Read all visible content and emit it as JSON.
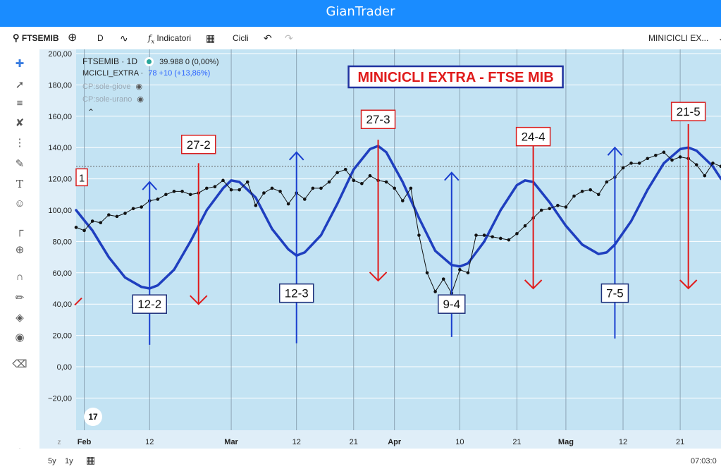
{
  "app": {
    "title": "GianTrader"
  },
  "toolbar": {
    "symbol": "FTSEMIB",
    "interval": "D",
    "indicators_label": "Indicatori",
    "cycles_label": "Cicli",
    "layout_name": "MINICICLI EX..."
  },
  "legend": {
    "symbol_line": "FTSEMIB · 1D",
    "price": "39.988 0 (0,00%)",
    "indicator_name": "MCICLI_EXTRA ·",
    "indicator_value": "78 +10 (+13,86%)",
    "hidden_1": "CP:sole-giove",
    "hidden_2": "CP:sole-urano"
  },
  "bottom": {
    "range_5y": "5y",
    "range_1y": "1y",
    "time": "07:03:0"
  },
  "colors": {
    "price_line": "#111111",
    "cycle_line": "#1f3fbf",
    "bg": "#c3e3f3",
    "up_arrow": "#1a3fcf",
    "down_arrow": "#e01b1b"
  },
  "icons": [
    "crosshair-icon",
    "trend-line-icon",
    "horizontal-lines-icon",
    "pattern-icon",
    "fib-icon",
    "brush-icon",
    "text-icon",
    "emoji-icon",
    "ruler-icon",
    "zoom-icon",
    "magnet-icon",
    "lock-draw-icon",
    "unlock-icon",
    "eye-icon",
    "trash-icon",
    "layers-icon"
  ],
  "chart_data": {
    "type": "line",
    "title": "MINICICLI EXTRA - FTSE MIB",
    "ylim": [
      -30,
      200
    ],
    "y_ticks": [
      "200,00",
      "180,00",
      "160,00",
      "140,00",
      "120,00",
      "100,00",
      "80,00",
      "60,00",
      "40,00",
      "20,00",
      "0,00",
      "−20,00"
    ],
    "x_ticks": [
      {
        "label": "Feb",
        "t": 1,
        "bold": true
      },
      {
        "label": "12",
        "t": 9
      },
      {
        "label": "Mar",
        "t": 19,
        "bold": true
      },
      {
        "label": "12",
        "t": 27
      },
      {
        "label": "21",
        "t": 34
      },
      {
        "label": "Apr",
        "t": 39,
        "bold": true
      },
      {
        "label": "10",
        "t": 47
      },
      {
        "label": "21",
        "t": 54
      },
      {
        "label": "Mag",
        "t": 60,
        "bold": true
      },
      {
        "label": "12",
        "t": 67
      },
      {
        "label": "21",
        "t": 74
      }
    ],
    "x_range": [
      0,
      79
    ],
    "reference_line": 128,
    "cycle_edge_label": "1",
    "series": [
      {
        "key": "price",
        "t": [
          0,
          1,
          2,
          3,
          4,
          5,
          6,
          7,
          8,
          9,
          10,
          11,
          12,
          13,
          14,
          15,
          16,
          17,
          18,
          19,
          20,
          21,
          22,
          23,
          24,
          25,
          26,
          27,
          28,
          29,
          30,
          31,
          32,
          33,
          34,
          35,
          36,
          37,
          38,
          39,
          40,
          41,
          42,
          43,
          44,
          45,
          46,
          47,
          48,
          49,
          50,
          51,
          52,
          53,
          54,
          55,
          56,
          57,
          58,
          59,
          60,
          61,
          62,
          63,
          64,
          65,
          66,
          67,
          68,
          69,
          70,
          71,
          72,
          73,
          74,
          75,
          76,
          77,
          78,
          79
        ],
        "values": [
          89,
          87,
          93,
          92,
          97,
          96,
          98,
          101,
          102,
          106,
          107,
          110,
          112,
          112,
          110,
          111,
          114,
          115,
          119,
          113,
          113,
          118,
          103,
          111,
          114,
          112,
          104,
          111,
          107,
          114,
          114,
          118,
          124,
          126,
          119,
          117,
          122,
          119,
          118,
          114,
          106,
          114,
          84,
          60,
          48,
          56,
          47,
          62,
          60,
          84,
          84,
          83,
          82,
          81,
          85,
          90,
          95,
          100,
          101,
          103,
          102,
          109,
          112,
          113,
          110,
          118,
          121,
          127,
          130,
          130,
          133,
          135,
          137,
          132,
          134,
          133,
          129,
          122,
          130,
          128
        ],
        "values_fix": [
          89,
          87,
          93,
          92,
          97,
          96,
          98,
          101,
          102,
          106,
          107,
          110,
          112,
          112,
          110,
          111,
          114,
          115,
          119,
          113,
          113,
          118,
          103,
          111,
          114,
          112,
          104,
          111,
          107,
          114,
          114,
          118,
          124,
          126,
          119,
          117,
          122,
          119,
          118,
          114,
          106,
          112,
          84,
          60,
          48,
          56,
          47,
          62,
          60,
          84,
          84,
          83,
          82,
          81,
          85,
          90,
          95,
          100,
          101,
          103,
          102,
          109,
          112,
          113,
          110,
          118,
          121,
          127,
          130,
          130,
          133,
          135,
          137,
          132,
          134,
          133,
          129,
          122,
          130,
          128
        ]
      },
      {
        "key": "cycle",
        "t": [
          0,
          2,
          4,
          6,
          8,
          9,
          10,
          12,
          14,
          16,
          18,
          19,
          20,
          22,
          24,
          26,
          27,
          28,
          30,
          32,
          34,
          36,
          37,
          38,
          40,
          42,
          44,
          46,
          47,
          48,
          50,
          52,
          54,
          55,
          56,
          58,
          60,
          62,
          64,
          65,
          66,
          68,
          70,
          72,
          74,
          75,
          76,
          78,
          79
        ],
        "values": [
          100,
          87,
          70,
          57,
          51,
          50,
          52,
          62,
          80,
          100,
          114,
          119,
          118,
          108,
          88,
          75,
          71,
          73,
          84,
          104,
          126,
          139,
          141,
          137,
          118,
          95,
          74,
          65,
          64,
          66,
          80,
          100,
          116,
          119,
          118,
          105,
          90,
          78,
          72,
          73,
          78,
          93,
          113,
          130,
          139,
          140,
          138,
          128,
          120
        ]
      }
    ],
    "annotations": [
      {
        "label": "12-2",
        "t": 9,
        "dir": "up",
        "tip": 118,
        "tail": 14,
        "box_y": 40,
        "color": "blue"
      },
      {
        "label": "27-2",
        "t": 15,
        "dir": "down",
        "tip": 40,
        "tail": 130,
        "box_y": 142,
        "color": "red"
      },
      {
        "label": "12-3",
        "t": 27,
        "dir": "up",
        "tip": 137,
        "tail": 15,
        "box_y": 47,
        "color": "blue"
      },
      {
        "label": "27-3",
        "t": 37,
        "dir": "down",
        "tip": 55,
        "tail": 145,
        "box_y": 158,
        "color": "red"
      },
      {
        "label": "9-4",
        "t": 46,
        "dir": "up",
        "tip": 124,
        "tail": 19,
        "box_y": 40,
        "color": "blue"
      },
      {
        "label": "24-4",
        "t": 56,
        "dir": "down",
        "tip": 50,
        "tail": 152,
        "box_y": 147,
        "color": "red"
      },
      {
        "label": "7-5",
        "t": 66,
        "dir": "up",
        "tip": 140,
        "tail": 18,
        "box_y": 47,
        "color": "blue"
      },
      {
        "label": "21-5",
        "t": 75,
        "dir": "down",
        "tip": 50,
        "tail": 155,
        "box_y": 163,
        "color": "red"
      }
    ]
  }
}
